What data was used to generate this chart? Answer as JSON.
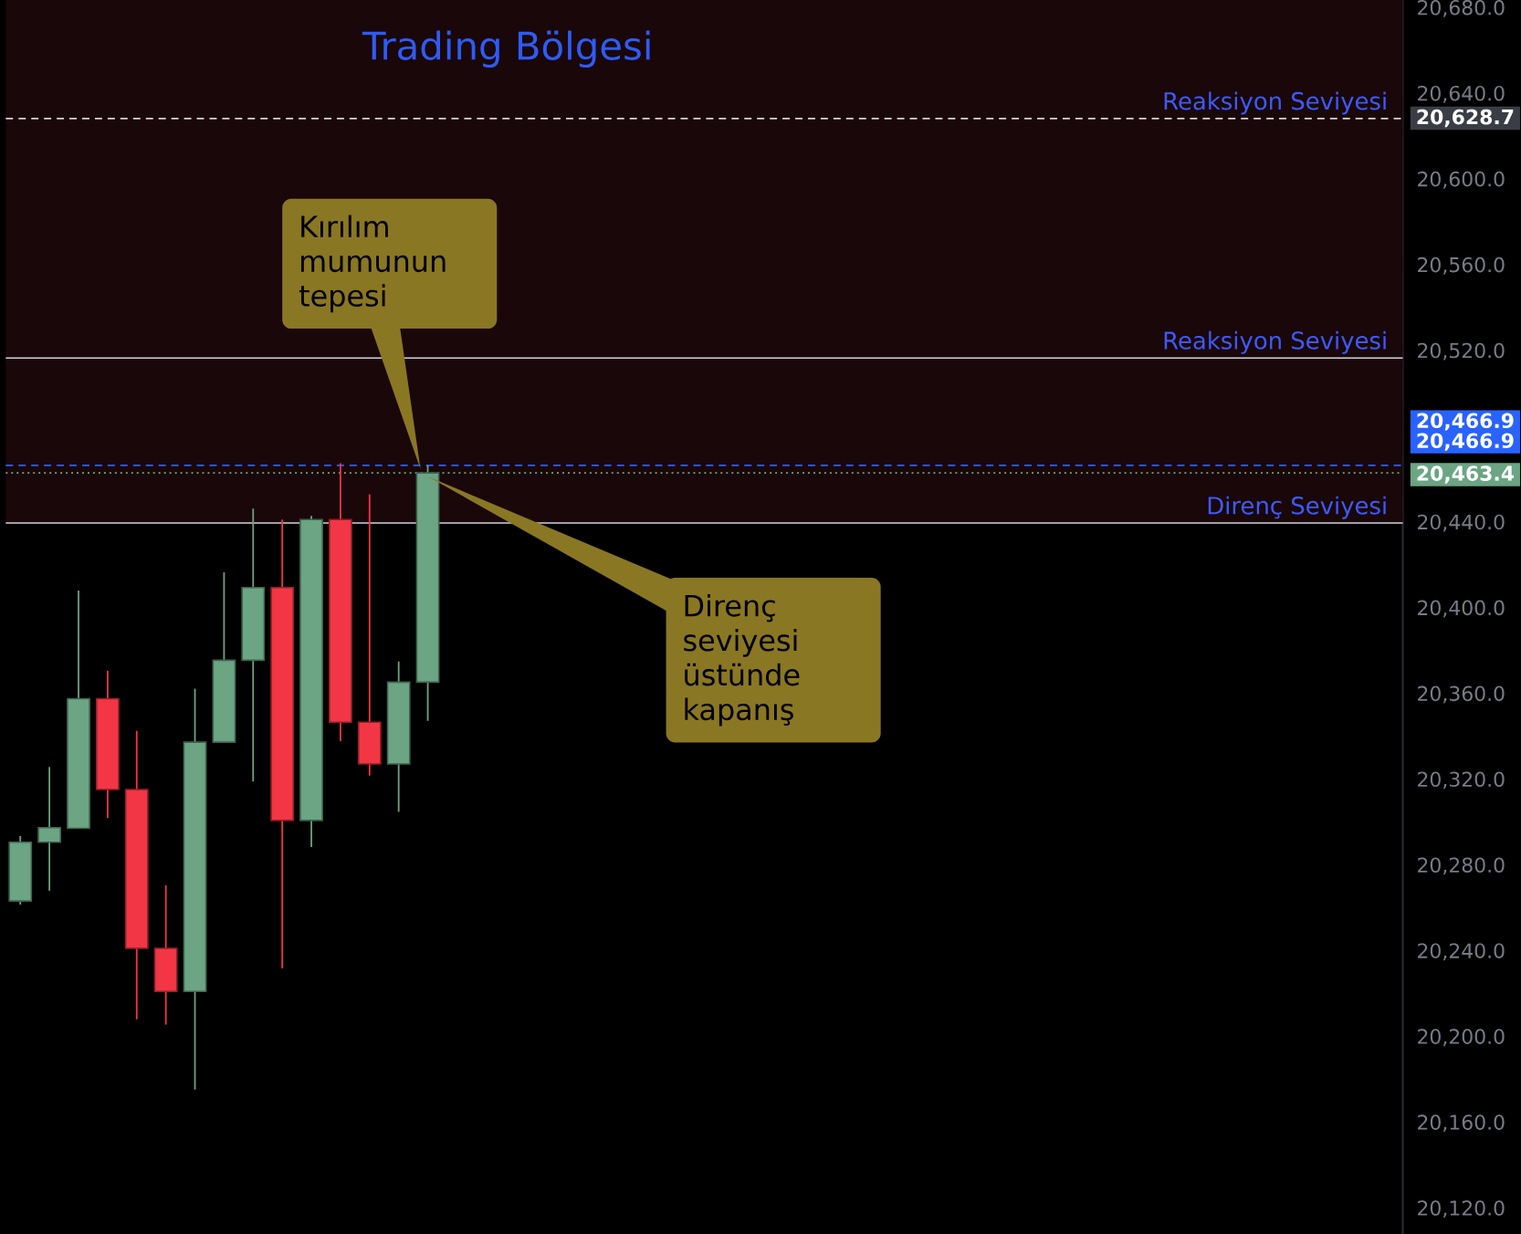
{
  "chart_data": {
    "type": "candlestick",
    "title": "Trading Bölgesi",
    "categories": [
      null,
      null,
      null,
      null,
      null,
      null,
      null,
      null,
      null,
      null,
      null,
      null,
      null,
      null,
      null,
      null,
      null,
      null,
      null,
      null,
      null,
      null,
      null,
      null,
      null,
      null,
      null,
      null,
      null,
      null,
      null,
      null,
      null,
      null,
      null,
      null,
      null,
      null,
      null,
      null,
      null,
      null,
      null,
      null,
      null,
      null,
      null,
      null
    ],
    "ohlc": [
      [
        20263.7,
        20294,
        20262,
        20291.1
      ],
      [
        20291.1,
        20326.2,
        20268.5,
        20297.9
      ],
      [
        20297.6,
        20408.5,
        20297.6,
        20358.1
      ],
      [
        20358.1,
        20371.1,
        20302.4,
        20315.7
      ],
      [
        20315.7,
        20343.1,
        20208.5,
        20241.6
      ],
      [
        20241.6,
        20271.0,
        20206.0,
        20221.5
      ],
      [
        20221.5,
        20362.7,
        20175.7,
        20337.8
      ],
      [
        20337.8,
        20417.0,
        20337.8,
        20376.0
      ],
      [
        20376.0,
        20446.7,
        20319.4,
        20409.9
      ],
      [
        20409.9,
        20441.6,
        20232.3,
        20301.3
      ],
      [
        20301.3,
        20443.3,
        20288.9,
        20441.6
      ],
      [
        20441.6,
        20467.9,
        20338.3,
        20347.1
      ],
      [
        20347.1,
        20453.4,
        20322.2,
        20327.6
      ],
      [
        20327.6,
        20375.4,
        20305.3,
        20365.8
      ],
      [
        20365.8,
        20466.9,
        20347.7,
        20463.4
      ],
      null,
      null,
      null,
      null,
      null,
      null,
      null,
      null,
      null,
      null,
      null,
      null,
      null,
      null,
      null,
      null,
      null,
      null,
      null,
      null,
      null,
      null,
      null,
      null,
      null,
      null,
      null,
      null,
      null,
      null,
      null,
      null,
      null
    ],
    "colors": [
      "#6ba583",
      "#6ba583",
      "#6ba583",
      "#f23645",
      "#f23645",
      "#f23645",
      "#6ba583",
      "#6ba583",
      "#6ba583",
      "#f23645",
      "#6ba583",
      "#f23645",
      "#f23645",
      "#6ba583",
      "#6ba583",
      null,
      null,
      null,
      null,
      null,
      null,
      null,
      null,
      null,
      null,
      null,
      null,
      null,
      null,
      null,
      null,
      null,
      null,
      null,
      null,
      null,
      null,
      null,
      null,
      null,
      null,
      null,
      null,
      null,
      null,
      null,
      null,
      null
    ],
    "ylim": [
      20108,
      20684
    ],
    "yticks": [
      {
        "value": 20120,
        "label": "20,120.0"
      },
      {
        "value": 20160,
        "label": "20,160.0"
      },
      {
        "value": 20200,
        "label": "20,200.0"
      },
      {
        "value": 20240,
        "label": "20,240.0"
      },
      {
        "value": 20280,
        "label": "20,280.0"
      },
      {
        "value": 20320,
        "label": "20,320.0"
      },
      {
        "value": 20360,
        "label": "20,360.0"
      },
      {
        "value": 20400,
        "label": "20,400.0"
      },
      {
        "value": 20440,
        "label": "20,440.0"
      },
      {
        "value": 20520,
        "label": "20,520.0"
      },
      {
        "value": 20560,
        "label": "20,560.0"
      },
      {
        "value": 20600,
        "label": "20,600.0"
      },
      {
        "value": 20640,
        "label": "20,640.0"
      },
      {
        "value": 20680,
        "label": "20,680.0"
      }
    ],
    "tick_labels": "y",
    "bands": [
      {
        "axis": "y",
        "from": 20440,
        "to": 20684,
        "color": "#1a0709"
      }
    ],
    "ref_lines": [
      {
        "axis": "y",
        "value": 20628.7,
        "label": "Reaksiyon Seviyesi",
        "color": "#d1d4dc",
        "line_style": "dashed"
      },
      {
        "axis": "y",
        "value": 20517,
        "label": "Reaksiyon Seviyesi",
        "color": "#d1d4dc"
      },
      {
        "axis": "y",
        "value": 20440,
        "label": "Direnç Seviyesi",
        "color": "#d1d4dc"
      },
      {
        "axis": "y",
        "value": 20466.9,
        "color": "#2962ff",
        "line_style": "dashed"
      },
      {
        "axis": "y",
        "value": 20463.4,
        "color": "#6ba583",
        "line_style": "dotted"
      }
    ],
    "annotations": [
      "Kırılım mumunun tepesi",
      "Direnç seviyesi üstünde kapanış",
      "20,628.7",
      "20,466.9",
      "20,466.9",
      "20,463.4"
    ]
  }
}
